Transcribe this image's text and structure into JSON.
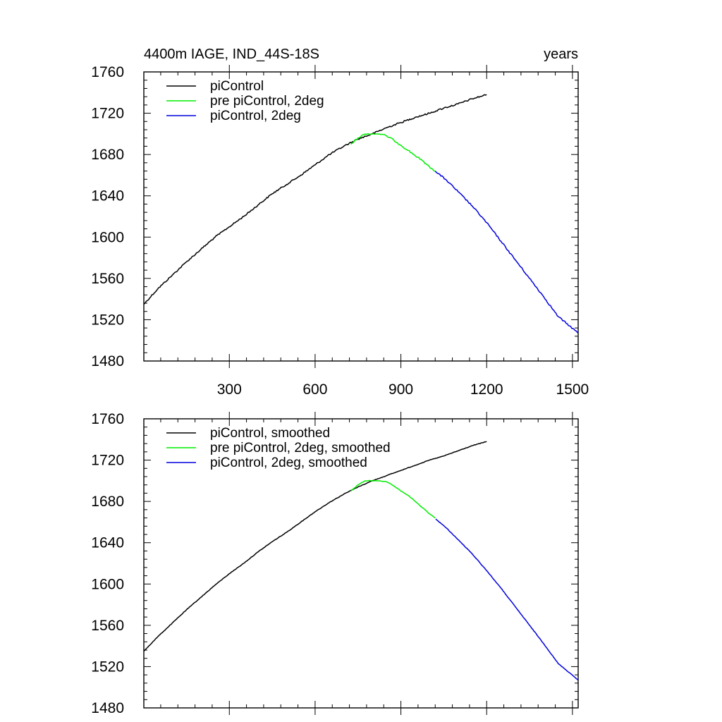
{
  "chart_data": [
    {
      "type": "line",
      "title_left": "4400m IAGE, IND_44S-18S",
      "title_right": "years",
      "xlabel": "",
      "ylabel": "",
      "xlim": [
        1,
        1520
      ],
      "ylim": [
        1480,
        1760
      ],
      "x_ticks": [
        300,
        600,
        900,
        1200,
        1500
      ],
      "y_ticks": [
        1480,
        1520,
        1560,
        1600,
        1640,
        1680,
        1720,
        1760
      ],
      "x_tick_labels_shown": true,
      "legend": "top-left",
      "series": [
        {
          "name": "piControl",
          "color": "#000000",
          "x": [
            1,
            50,
            100,
            150,
            200,
            250,
            300,
            350,
            400,
            450,
            500,
            550,
            600,
            650,
            700,
            750,
            800,
            850,
            900,
            950,
            1000,
            1050,
            1100,
            1150,
            1200
          ],
          "y": [
            1535,
            1550,
            1563,
            1576,
            1588,
            1600,
            1610,
            1620,
            1631,
            1642,
            1651,
            1660,
            1670,
            1680,
            1688,
            1695,
            1700,
            1706,
            1711,
            1716,
            1720,
            1725,
            1729,
            1734,
            1738
          ]
        },
        {
          "name": "pre piControl, 2deg",
          "color": "#00ee00",
          "x": [
            725,
            750,
            775,
            800,
            825,
            850,
            875,
            900,
            925,
            950,
            975,
            1000,
            1020
          ],
          "y": [
            1690,
            1696,
            1700,
            1700,
            1700,
            1698,
            1694,
            1689,
            1684,
            1679,
            1674,
            1668,
            1664
          ]
        },
        {
          "name": "piControl, 2deg",
          "color": "#0000dd",
          "x": [
            1020,
            1060,
            1100,
            1150,
            1200,
            1250,
            1300,
            1350,
            1400,
            1450,
            1490,
            1520
          ],
          "y": [
            1664,
            1655,
            1644,
            1630,
            1614,
            1596,
            1578,
            1560,
            1542,
            1523,
            1514,
            1507
          ]
        }
      ]
    },
    {
      "type": "line",
      "title_left": "",
      "title_right": "",
      "xlabel": "",
      "ylabel": "",
      "xlim": [
        1,
        1520
      ],
      "ylim": [
        1480,
        1760
      ],
      "x_ticks": [
        300,
        600,
        900,
        1200,
        1500
      ],
      "y_ticks": [
        1480,
        1520,
        1560,
        1600,
        1640,
        1680,
        1720,
        1760
      ],
      "x_tick_labels_shown": false,
      "legend": "top-left",
      "series": [
        {
          "name": "piControl, smoothed",
          "color": "#000000",
          "x": [
            1,
            50,
            100,
            150,
            200,
            250,
            300,
            350,
            400,
            450,
            500,
            550,
            600,
            650,
            700,
            750,
            800,
            850,
            900,
            950,
            1000,
            1050,
            1100,
            1150,
            1200
          ],
          "y": [
            1535,
            1549,
            1562,
            1575,
            1587,
            1599,
            1610,
            1620,
            1631,
            1641,
            1650,
            1660,
            1670,
            1679,
            1687,
            1694,
            1700,
            1705,
            1710,
            1715,
            1720,
            1724,
            1729,
            1734,
            1738
          ]
        },
        {
          "name": "pre piControl, 2deg, smoothed",
          "color": "#00ee00",
          "x": [
            725,
            750,
            775,
            800,
            825,
            850,
            875,
            900,
            925,
            950,
            975,
            1000,
            1020
          ],
          "y": [
            1690,
            1696,
            1700,
            1700,
            1700,
            1699,
            1695,
            1690,
            1686,
            1680,
            1674,
            1668,
            1664
          ]
        },
        {
          "name": "piControl, 2deg, smoothed",
          "color": "#0000dd",
          "x": [
            1022,
            1060,
            1100,
            1150,
            1200,
            1250,
            1300,
            1350,
            1400,
            1450,
            1490,
            1520
          ],
          "y": [
            1663,
            1654,
            1643,
            1629,
            1613,
            1596,
            1578,
            1560,
            1542,
            1523,
            1514,
            1507
          ]
        }
      ]
    }
  ]
}
